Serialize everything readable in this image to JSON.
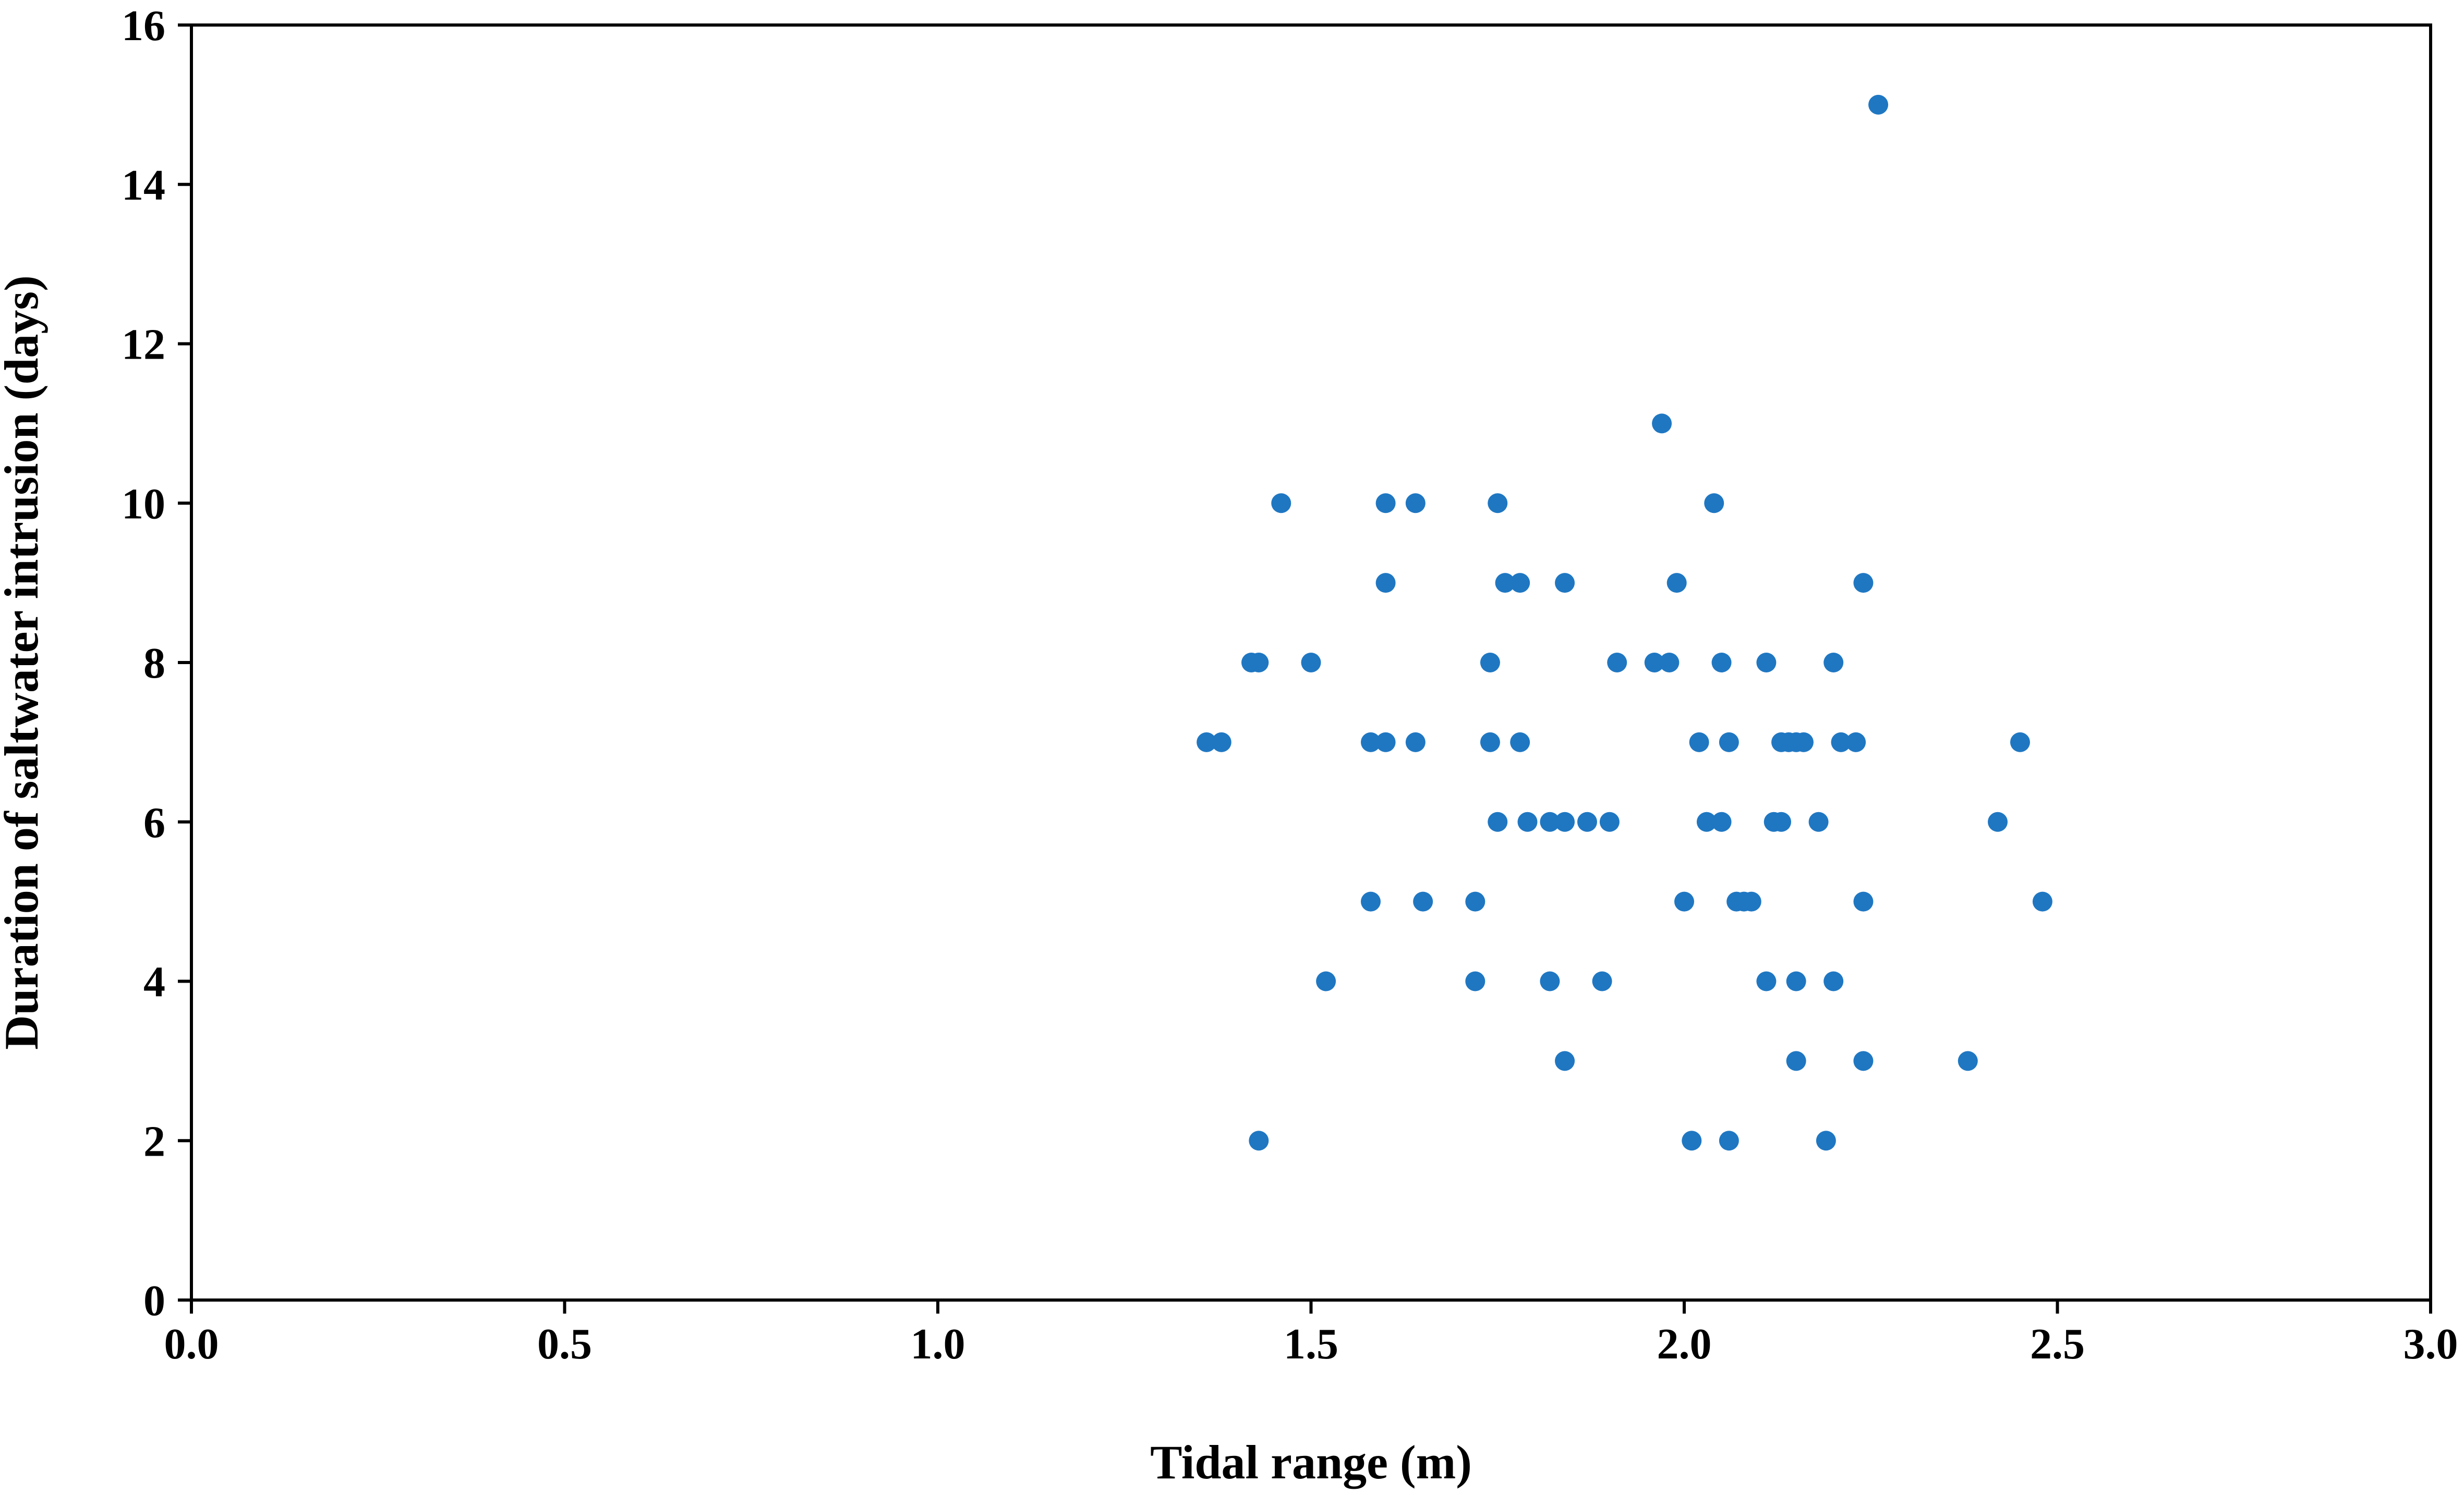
{
  "chart_data": {
    "type": "scatter",
    "title": "",
    "xlabel": "Tidal range (m)",
    "ylabel": "Duration of saltwater intrusion (days)",
    "xlim": [
      0.0,
      3.0
    ],
    "ylim": [
      0,
      16
    ],
    "xticks": [
      "0.0",
      "0.5",
      "1.0",
      "1.5",
      "2.0",
      "2.5",
      "3.0"
    ],
    "yticks": [
      "0",
      "2",
      "4",
      "6",
      "8",
      "10",
      "12",
      "14",
      "16"
    ],
    "grid": false,
    "legend": "none",
    "marker_color": "#1f77c2",
    "points": [
      {
        "x": 2.26,
        "y": 15
      },
      {
        "x": 1.97,
        "y": 11
      },
      {
        "x": 1.46,
        "y": 10
      },
      {
        "x": 1.6,
        "y": 10
      },
      {
        "x": 1.64,
        "y": 10
      },
      {
        "x": 1.75,
        "y": 10
      },
      {
        "x": 2.04,
        "y": 10
      },
      {
        "x": 1.6,
        "y": 9
      },
      {
        "x": 1.76,
        "y": 9
      },
      {
        "x": 1.78,
        "y": 9
      },
      {
        "x": 1.84,
        "y": 9
      },
      {
        "x": 1.99,
        "y": 9
      },
      {
        "x": 2.24,
        "y": 9
      },
      {
        "x": 1.42,
        "y": 8
      },
      {
        "x": 1.43,
        "y": 8
      },
      {
        "x": 1.5,
        "y": 8
      },
      {
        "x": 1.74,
        "y": 8
      },
      {
        "x": 1.91,
        "y": 8
      },
      {
        "x": 1.96,
        "y": 8
      },
      {
        "x": 1.98,
        "y": 8
      },
      {
        "x": 2.05,
        "y": 8
      },
      {
        "x": 2.11,
        "y": 8
      },
      {
        "x": 2.2,
        "y": 8
      },
      {
        "x": 1.36,
        "y": 7
      },
      {
        "x": 1.38,
        "y": 7
      },
      {
        "x": 1.58,
        "y": 7
      },
      {
        "x": 1.6,
        "y": 7
      },
      {
        "x": 1.64,
        "y": 7
      },
      {
        "x": 1.74,
        "y": 7
      },
      {
        "x": 1.78,
        "y": 7
      },
      {
        "x": 2.02,
        "y": 7
      },
      {
        "x": 2.06,
        "y": 7
      },
      {
        "x": 2.13,
        "y": 7
      },
      {
        "x": 2.14,
        "y": 7
      },
      {
        "x": 2.15,
        "y": 7
      },
      {
        "x": 2.16,
        "y": 7
      },
      {
        "x": 2.21,
        "y": 7
      },
      {
        "x": 2.23,
        "y": 7
      },
      {
        "x": 2.45,
        "y": 7
      },
      {
        "x": 1.75,
        "y": 6
      },
      {
        "x": 1.79,
        "y": 6
      },
      {
        "x": 1.82,
        "y": 6
      },
      {
        "x": 1.84,
        "y": 6
      },
      {
        "x": 1.87,
        "y": 6
      },
      {
        "x": 1.9,
        "y": 6
      },
      {
        "x": 2.03,
        "y": 6
      },
      {
        "x": 2.05,
        "y": 6
      },
      {
        "x": 2.12,
        "y": 6
      },
      {
        "x": 2.13,
        "y": 6
      },
      {
        "x": 2.18,
        "y": 6
      },
      {
        "x": 2.42,
        "y": 6
      },
      {
        "x": 1.58,
        "y": 5
      },
      {
        "x": 1.65,
        "y": 5
      },
      {
        "x": 1.72,
        "y": 5
      },
      {
        "x": 2.0,
        "y": 5
      },
      {
        "x": 2.07,
        "y": 5
      },
      {
        "x": 2.08,
        "y": 5
      },
      {
        "x": 2.09,
        "y": 5
      },
      {
        "x": 2.24,
        "y": 5
      },
      {
        "x": 2.48,
        "y": 5
      },
      {
        "x": 1.52,
        "y": 4
      },
      {
        "x": 1.72,
        "y": 4
      },
      {
        "x": 1.82,
        "y": 4
      },
      {
        "x": 1.89,
        "y": 4
      },
      {
        "x": 2.11,
        "y": 4
      },
      {
        "x": 2.15,
        "y": 4
      },
      {
        "x": 2.2,
        "y": 4
      },
      {
        "x": 1.84,
        "y": 3
      },
      {
        "x": 2.15,
        "y": 3
      },
      {
        "x": 2.24,
        "y": 3
      },
      {
        "x": 2.38,
        "y": 3
      },
      {
        "x": 1.43,
        "y": 2
      },
      {
        "x": 2.01,
        "y": 2
      },
      {
        "x": 2.06,
        "y": 2
      },
      {
        "x": 2.19,
        "y": 2
      }
    ]
  }
}
